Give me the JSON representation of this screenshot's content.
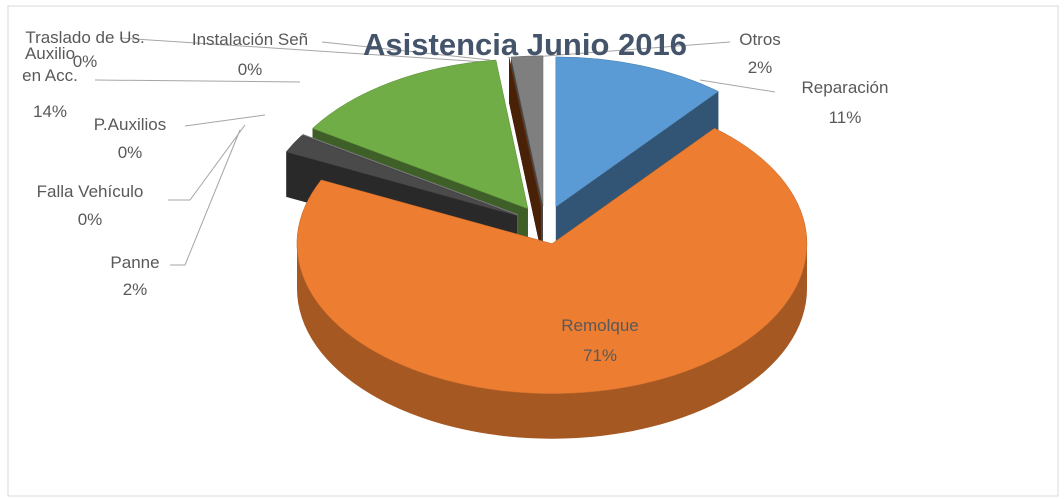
{
  "chart_data": {
    "type": "pie3d",
    "title": "Asistencia Junio 2016",
    "categories": [
      "Reparación",
      "Remolque",
      "Panne",
      "Falla Vehículo",
      "P.Auxilios",
      "Auxilio en Acc.",
      "Traslado de Us.",
      "Instalación Señ",
      "Otros"
    ],
    "values": [
      11,
      71,
      2,
      0,
      0,
      14,
      0,
      0,
      2
    ],
    "value_labels": [
      "11%",
      "71%",
      "2%",
      "0%",
      "0%",
      "14%",
      "0%",
      "0%",
      "2%"
    ],
    "colors": [
      "#5b9bd5",
      "#ed7d31",
      "#4a4a4a",
      "#6f6f6f",
      "#a5a5a5",
      "#70ad47",
      "#264478",
      "#843c0c",
      "#7f7f7f"
    ]
  }
}
